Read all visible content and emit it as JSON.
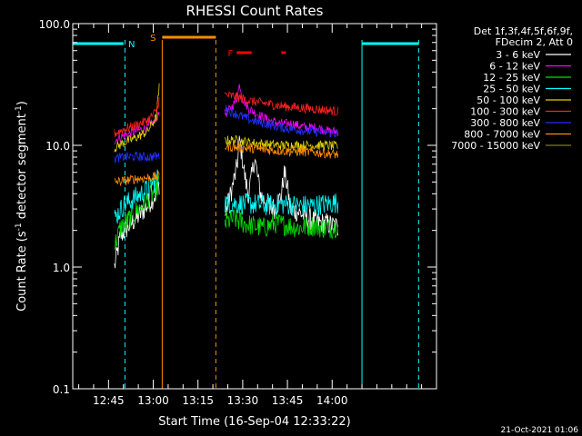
{
  "chart_data": {
    "type": "line",
    "title": "RHESSI Count Rates",
    "xlabel": "Start Time (16-Sep-04 12:33:22)",
    "ylabel_main": "Count Rate (s",
    "ylabel_sup1": "-1",
    "ylabel_mid": " detector segment",
    "ylabel_sup2": "-1",
    "ylabel_end": ")",
    "y_scale": "log",
    "ylim": [
      0.1,
      100
    ],
    "y_ticks": [
      {
        "value": 0.1,
        "label": "0.1"
      },
      {
        "value": 1,
        "label": "1.0"
      },
      {
        "value": 10,
        "label": "10.0"
      },
      {
        "value": 100,
        "label": "100.0"
      }
    ],
    "xlim_minutes": [
      0,
      122
    ],
    "x_ticks": [
      {
        "minute": 12,
        "label": "12:45"
      },
      {
        "minute": 27,
        "label": "13:00"
      },
      {
        "minute": 42,
        "label": "13:15"
      },
      {
        "minute": 57,
        "label": "13:30"
      },
      {
        "minute": 72,
        "label": "13:45"
      },
      {
        "minute": 87,
        "label": "14:00"
      }
    ],
    "legend": {
      "header1": "Det 1f,3f,4f,5f,6f,9f,",
      "header2": "FDecim 2, Att 0",
      "entries": [
        {
          "label": "3 - 6 keV",
          "color": "#ffffff"
        },
        {
          "label": "6 - 12 keV",
          "color": "#ff00ff"
        },
        {
          "label": "12 - 25 keV",
          "color": "#00e000"
        },
        {
          "label": "25 - 50 keV",
          "color": "#00ffff"
        },
        {
          "label": "50 - 100 keV",
          "color": "#e0d000"
        },
        {
          "label": "100 - 300 keV",
          "color": "#ff2020"
        },
        {
          "label": "300 - 800 keV",
          "color": "#2030ff"
        },
        {
          "label": "800 - 7000 keV",
          "color": "#ff8c00"
        },
        {
          "label": "7000 - 15000 keV",
          "color": "#808000"
        }
      ]
    },
    "flags": [
      {
        "label": "N",
        "color": "#00ffff",
        "segments": [
          [
            0,
            17
          ],
          [
            97,
            116
          ]
        ],
        "dashed_minute": 17.5
      },
      {
        "label": "S",
        "color": "#ff8c00",
        "segments": [
          [
            30,
            48
          ]
        ],
        "dashed_minute": 48
      },
      {
        "label": "F",
        "color": "#ff0000",
        "segments": [
          [
            55,
            60
          ],
          [
            70,
            71.5
          ]
        ]
      }
    ],
    "vertical_lines": [
      {
        "minute": 0,
        "color": "#00ffff",
        "style": "solid"
      },
      {
        "minute": 17.5,
        "color": "#00ffff",
        "style": "dashed"
      },
      {
        "minute": 30,
        "color": "#ff8c00",
        "style": "solid"
      },
      {
        "minute": 48,
        "color": "#ff8c00",
        "style": "dashed"
      },
      {
        "minute": 97,
        "color": "#00ffff",
        "style": "solid"
      },
      {
        "minute": 116,
        "color": "#00ffff",
        "style": "dashed"
      }
    ],
    "series": [
      {
        "name": "3 - 6 keV",
        "color": "#ffffff",
        "points": [
          [
            14,
            1.0
          ],
          [
            16,
            1.8
          ],
          [
            19,
            2.2
          ],
          [
            22,
            2.6
          ],
          [
            25,
            3.2
          ],
          [
            28,
            4.0
          ],
          [
            29,
            4.8
          ],
          [
            51,
            2.6
          ],
          [
            53,
            4.0
          ],
          [
            55,
            6.5
          ],
          [
            56,
            11
          ],
          [
            57,
            7.5
          ],
          [
            58,
            5.0
          ],
          [
            59,
            4.0
          ],
          [
            60,
            5.5
          ],
          [
            61,
            8.0
          ],
          [
            62,
            5.5
          ],
          [
            63,
            4.0
          ],
          [
            64,
            3.6
          ],
          [
            66,
            3.2
          ],
          [
            68,
            3.0
          ],
          [
            70,
            4.0
          ],
          [
            71,
            6.0
          ],
          [
            72,
            4.5
          ],
          [
            73,
            3.0
          ],
          [
            76,
            2.8
          ],
          [
            79,
            2.5
          ],
          [
            81,
            2.4
          ],
          [
            83,
            2.3
          ],
          [
            85,
            2.3
          ],
          [
            87,
            2.2
          ],
          [
            88,
            2.2
          ],
          [
            89,
            2.1
          ]
        ]
      },
      {
        "name": "6 - 12 keV",
        "color": "#ff00ff",
        "points": [
          [
            14,
            11
          ],
          [
            17,
            12
          ],
          [
            21,
            13
          ],
          [
            25,
            14
          ],
          [
            28,
            16
          ],
          [
            29,
            20
          ],
          [
            51,
            18
          ],
          [
            53,
            20
          ],
          [
            55,
            24
          ],
          [
            56,
            32
          ],
          [
            57,
            24
          ],
          [
            59,
            20
          ],
          [
            62,
            18
          ],
          [
            66,
            16
          ],
          [
            70,
            15
          ],
          [
            74,
            15
          ],
          [
            78,
            14
          ],
          [
            82,
            14
          ],
          [
            86,
            13
          ],
          [
            89,
            13
          ]
        ]
      },
      {
        "name": "12 - 25 keV",
        "color": "#00e000",
        "points": [
          [
            14,
            1.5
          ],
          [
            16,
            2.1
          ],
          [
            19,
            2.5
          ],
          [
            22,
            3.0
          ],
          [
            25,
            3.6
          ],
          [
            28,
            4.3
          ],
          [
            29,
            5.0
          ],
          [
            51,
            2.3
          ],
          [
            54,
            2.5
          ],
          [
            57,
            2.3
          ],
          [
            60,
            2.2
          ],
          [
            64,
            2.1
          ],
          [
            68,
            2.3
          ],
          [
            72,
            2.2
          ],
          [
            76,
            2.1
          ],
          [
            80,
            2.2
          ],
          [
            84,
            2.1
          ],
          [
            87,
            2.1
          ],
          [
            89,
            2.2
          ]
        ]
      },
      {
        "name": "25 - 50 keV",
        "color": "#00ffff",
        "points": [
          [
            14,
            2.5
          ],
          [
            17,
            3.2
          ],
          [
            20,
            3.6
          ],
          [
            23,
            4.0
          ],
          [
            26,
            4.6
          ],
          [
            29,
            5.5
          ],
          [
            51,
            3.4
          ],
          [
            55,
            3.3
          ],
          [
            60,
            3.3
          ],
          [
            65,
            3.2
          ],
          [
            70,
            3.3
          ],
          [
            75,
            3.2
          ],
          [
            80,
            3.2
          ],
          [
            85,
            3.3
          ],
          [
            89,
            3.4
          ]
        ]
      },
      {
        "name": "50 - 100 keV",
        "color": "#e0d000",
        "points": [
          [
            14,
            9.5
          ],
          [
            17,
            10.5
          ],
          [
            21,
            11.5
          ],
          [
            25,
            13
          ],
          [
            28,
            17
          ],
          [
            29,
            30
          ],
          [
            51,
            11
          ],
          [
            55,
            11
          ],
          [
            60,
            10.5
          ],
          [
            65,
            10.2
          ],
          [
            70,
            10
          ],
          [
            75,
            10
          ],
          [
            80,
            10
          ],
          [
            85,
            10
          ],
          [
            89,
            9.8
          ]
        ]
      },
      {
        "name": "100 - 300 keV",
        "color": "#ff2020",
        "points": [
          [
            14,
            12.5
          ],
          [
            17,
            13.5
          ],
          [
            21,
            14.5
          ],
          [
            25,
            16
          ],
          [
            28,
            19
          ],
          [
            29,
            24
          ],
          [
            51,
            26
          ],
          [
            55,
            25
          ],
          [
            60,
            23
          ],
          [
            65,
            22
          ],
          [
            70,
            21
          ],
          [
            75,
            20.5
          ],
          [
            80,
            20
          ],
          [
            85,
            19.5
          ],
          [
            89,
            19
          ]
        ]
      },
      {
        "name": "300 - 800 keV",
        "color": "#2030ff",
        "points": [
          [
            14,
            7.8
          ],
          [
            17,
            8.0
          ],
          [
            21,
            8.1
          ],
          [
            25,
            8.0
          ],
          [
            29,
            8.2
          ],
          [
            51,
            20
          ],
          [
            55,
            18
          ],
          [
            60,
            16
          ],
          [
            65,
            15
          ],
          [
            70,
            14
          ],
          [
            75,
            13.5
          ],
          [
            80,
            13
          ],
          [
            85,
            12.8
          ],
          [
            89,
            12.5
          ]
        ]
      },
      {
        "name": "800 - 7000 keV",
        "color": "#ff8c00",
        "points": [
          [
            14,
            5.0
          ],
          [
            17,
            5.1
          ],
          [
            21,
            5.3
          ],
          [
            25,
            5.4
          ],
          [
            29,
            5.6
          ],
          [
            51,
            9.8
          ],
          [
            55,
            9.6
          ],
          [
            60,
            9.4
          ],
          [
            65,
            9.2
          ],
          [
            70,
            9.0
          ],
          [
            75,
            8.9
          ],
          [
            80,
            8.8
          ],
          [
            85,
            8.6
          ],
          [
            89,
            8.4
          ]
        ]
      }
    ]
  },
  "footer": {
    "date_stamp": "21-Oct-2021 01:06"
  }
}
